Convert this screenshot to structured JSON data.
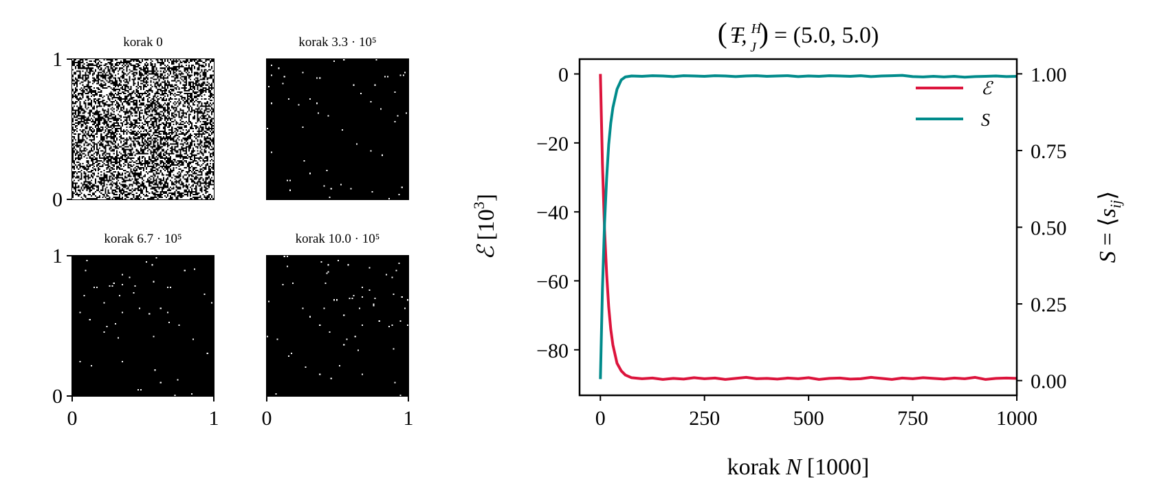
{
  "chart_data": [
    {
      "type": "heatmap",
      "description_kind": "spin-lattice-snapshots",
      "lattice_size": 100,
      "panels": [
        {
          "title": "korak 0",
          "up_fraction": 0.52
        },
        {
          "title": "korak 3.3 · 10⁵",
          "up_fraction": 0.005
        },
        {
          "title": "korak 6.7 · 10⁵",
          "up_fraction": 0.005
        },
        {
          "title": "korak 10.0 · 10⁵",
          "up_fraction": 0.006
        }
      ],
      "xticks": [
        "0",
        "1"
      ],
      "yticks": [
        "0",
        "1"
      ],
      "xlim": [
        0,
        1
      ],
      "ylim": [
        0,
        1
      ],
      "colors": {
        "up": "#000000",
        "down": "#ffffff"
      }
    },
    {
      "type": "line",
      "title": {
        "open": "(",
        "var": "T,",
        "num": "H",
        "den": "J",
        "close": ")",
        "rhs": "= (5.0, 5.0)"
      },
      "xlabel": {
        "word": "korak",
        "var": "N",
        "unit": "[1000]"
      },
      "ylabel_left": {
        "var": "ℰ",
        "unit": "[10",
        "exp": "3",
        "unit_close": "]"
      },
      "ylabel_right": {
        "var": "S",
        "eq": "= ⟨",
        "s": "s",
        "sub": "ij",
        "close": "⟩"
      },
      "xlim": [
        -50,
        1000
      ],
      "ylim_left": [
        -93.2,
        4.3
      ],
      "ylim_right": [
        -0.048,
        1.048
      ],
      "xticks": [
        0,
        250,
        500,
        750,
        1000
      ],
      "xtick_labels": [
        "0",
        "250",
        "500",
        "750",
        "1000"
      ],
      "yticks_left": [
        0,
        -20,
        -40,
        -60,
        -80
      ],
      "ytick_labels_left": [
        "0",
        "−20",
        "−40",
        "−60",
        "−80"
      ],
      "yticks_right": [
        1.0,
        0.75,
        0.5,
        0.25,
        0.0
      ],
      "ytick_labels_right": [
        "1.00",
        "0.75",
        "0.50",
        "0.25",
        "0.00"
      ],
      "grid": false,
      "legend_position": "top-right",
      "x": [
        0,
        5,
        10,
        15,
        20,
        25,
        30,
        40,
        50,
        60,
        75,
        100,
        125,
        150,
        175,
        200,
        225,
        250,
        275,
        300,
        325,
        350,
        375,
        400,
        425,
        450,
        475,
        500,
        525,
        550,
        575,
        600,
        625,
        650,
        675,
        700,
        725,
        750,
        775,
        800,
        825,
        850,
        875,
        900,
        925,
        950,
        975,
        1000
      ],
      "series": [
        {
          "name": "ℰ",
          "axis": "left",
          "color": "#dc143c",
          "values": [
            0,
            -26.2,
            -45.0,
            -58.0,
            -67.6,
            -74.1,
            -78.6,
            -83.9,
            -86.1,
            -87.3,
            -88.1,
            -88.4,
            -88.2,
            -88.6,
            -88.3,
            -88.5,
            -88.1,
            -88.4,
            -88.2,
            -88.6,
            -88.3,
            -88.0,
            -88.4,
            -88.3,
            -88.5,
            -88.2,
            -88.4,
            -88.1,
            -88.6,
            -88.3,
            -88.2,
            -88.5,
            -88.4,
            -88.0,
            -88.3,
            -88.6,
            -88.2,
            -88.4,
            -88.1,
            -88.3,
            -88.5,
            -88.2,
            -88.4,
            -88.0,
            -88.6,
            -88.3,
            -88.2,
            -88.3
          ]
        },
        {
          "name": "S",
          "axis": "right",
          "color": "#008b8b",
          "values": [
            0.005,
            0.3,
            0.51,
            0.66,
            0.77,
            0.84,
            0.89,
            0.95,
            0.98,
            0.99,
            0.993,
            0.992,
            0.994,
            0.993,
            0.991,
            0.994,
            0.993,
            0.992,
            0.994,
            0.993,
            0.991,
            0.993,
            0.994,
            0.992,
            0.993,
            0.994,
            0.991,
            0.993,
            0.992,
            0.994,
            0.993,
            0.992,
            0.994,
            0.991,
            0.993,
            0.994,
            0.995,
            0.991,
            0.99,
            0.992,
            0.99,
            0.992,
            0.989,
            0.991,
            0.992,
            0.993,
            0.991,
            0.992
          ]
        }
      ]
    }
  ]
}
